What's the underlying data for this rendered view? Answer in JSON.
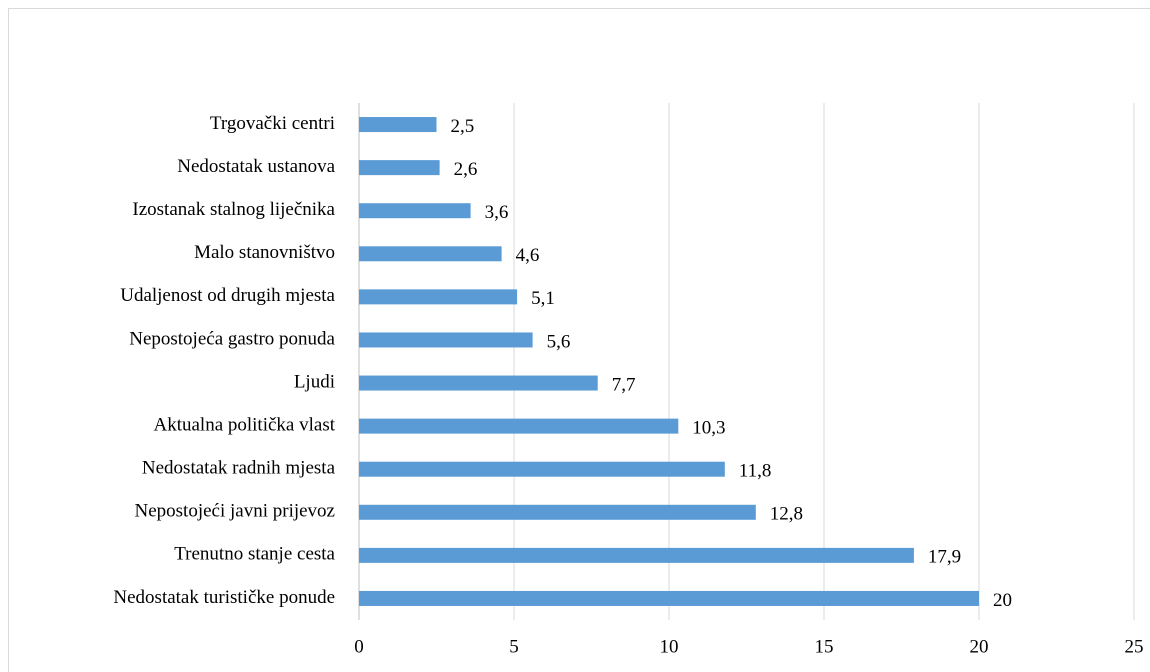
{
  "chart_data": {
    "type": "bar",
    "orientation": "horizontal",
    "categories": [
      "Trgovački centri",
      "Nedostatak ustanova",
      "Izostanak stalnog liječnika",
      "Malo stanovništvo",
      "Udaljenost od drugih mjesta",
      "Nepostojeća gastro ponuda",
      "Ljudi",
      "Aktualna politička vlast",
      "Nedostatak radnih mjesta",
      "Nepostojeći javni prijevoz",
      "Trenutno stanje cesta",
      "Nedostatak turističke ponude"
    ],
    "values": [
      2.5,
      2.6,
      3.6,
      4.6,
      5.1,
      5.6,
      7.7,
      10.3,
      11.8,
      12.8,
      17.9,
      20
    ],
    "value_labels": [
      "2,5",
      "2,6",
      "3,6",
      "4,6",
      "5,1",
      "5,6",
      "7,7",
      "10,3",
      "11,8",
      "12,8",
      "17,9",
      "20"
    ],
    "color": "#5b9bd5",
    "xlim": [
      0,
      25
    ],
    "xticks": [
      0,
      5,
      10,
      15,
      20,
      25
    ],
    "grid": true
  }
}
